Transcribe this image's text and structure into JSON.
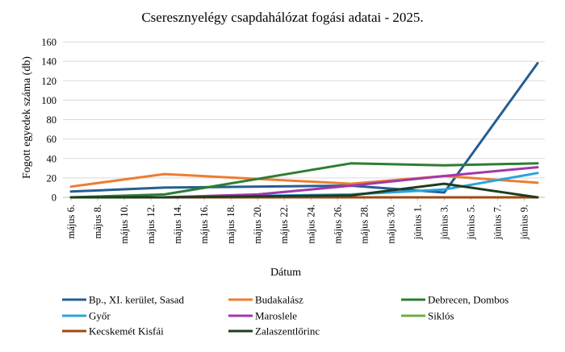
{
  "chart_data": {
    "type": "line",
    "title": "Cseresznyelégy csapdahálózat fogási adatai - 2025.",
    "xlabel": "Dátum",
    "ylabel": "Fogott egyedek száma (db)",
    "ylim": [
      0,
      160
    ],
    "yticks": [
      0,
      20,
      40,
      60,
      80,
      100,
      120,
      140,
      160
    ],
    "xticks": [
      "május 6.",
      "május 8.",
      "május 10.",
      "május 12.",
      "május 14.",
      "május 16.",
      "május 18.",
      "május 20.",
      "május 22.",
      "május 24.",
      "május 26.",
      "május 28.",
      "május 30.",
      "június 1.",
      "június 3.",
      "június 5.",
      "június 7.",
      "június 9."
    ],
    "grid": "horizontal",
    "legend_position": "bottom",
    "series": [
      {
        "name": "Bp., XI. kerület, Sasad",
        "color": "#255E91",
        "x": [
          "május 6.",
          "május 13.",
          "május 27.",
          "június 3.",
          "június 10."
        ],
        "values": [
          6,
          10,
          12,
          5,
          138
        ]
      },
      {
        "name": "Budakalász",
        "color": "#ED7D31",
        "x": [
          "május 6.",
          "május 13.",
          "május 27.",
          "június 3.",
          "június 10."
        ],
        "values": [
          11,
          24,
          14,
          22,
          15
        ]
      },
      {
        "name": "Debrecen, Dombos",
        "color": "#2E7D32",
        "x": [
          "május 6.",
          "május 13.",
          "május 27.",
          "június 3.",
          "június 10."
        ],
        "values": [
          0,
          3,
          35,
          33,
          35
        ]
      },
      {
        "name": "Győr",
        "color": "#2BA3DB",
        "x": [
          "május 6.",
          "május 13.",
          "május 27.",
          "június 3.",
          "június 10."
        ],
        "values": [
          0,
          0,
          3,
          8,
          25
        ]
      },
      {
        "name": "Maroslele",
        "color": "#A238A8",
        "x": [
          "május 6.",
          "május 13.",
          "május 20.",
          "május 27.",
          "június 3.",
          "június 10."
        ],
        "values": [
          0,
          0,
          3,
          12,
          22,
          31
        ]
      },
      {
        "name": "Siklós",
        "color": "#70AD47",
        "x": [
          "május 6.",
          "május 13.",
          "május 27.",
          "június 3.",
          "június 10."
        ],
        "values": [
          0,
          0,
          0,
          0,
          0
        ]
      },
      {
        "name": "Kecskemét Kisfái",
        "color": "#A0480F",
        "x": [
          "május 6.",
          "május 13.",
          "május 27.",
          "június 3.",
          "június 10."
        ],
        "values": [
          0,
          0,
          0,
          0,
          0
        ]
      },
      {
        "name": "Zalaszentlőrinc",
        "color": "#1E3D1F",
        "x": [
          "május 6.",
          "május 13.",
          "május 27.",
          "június 3.",
          "június 10."
        ],
        "values": [
          0,
          0,
          2,
          14,
          0
        ]
      }
    ]
  }
}
